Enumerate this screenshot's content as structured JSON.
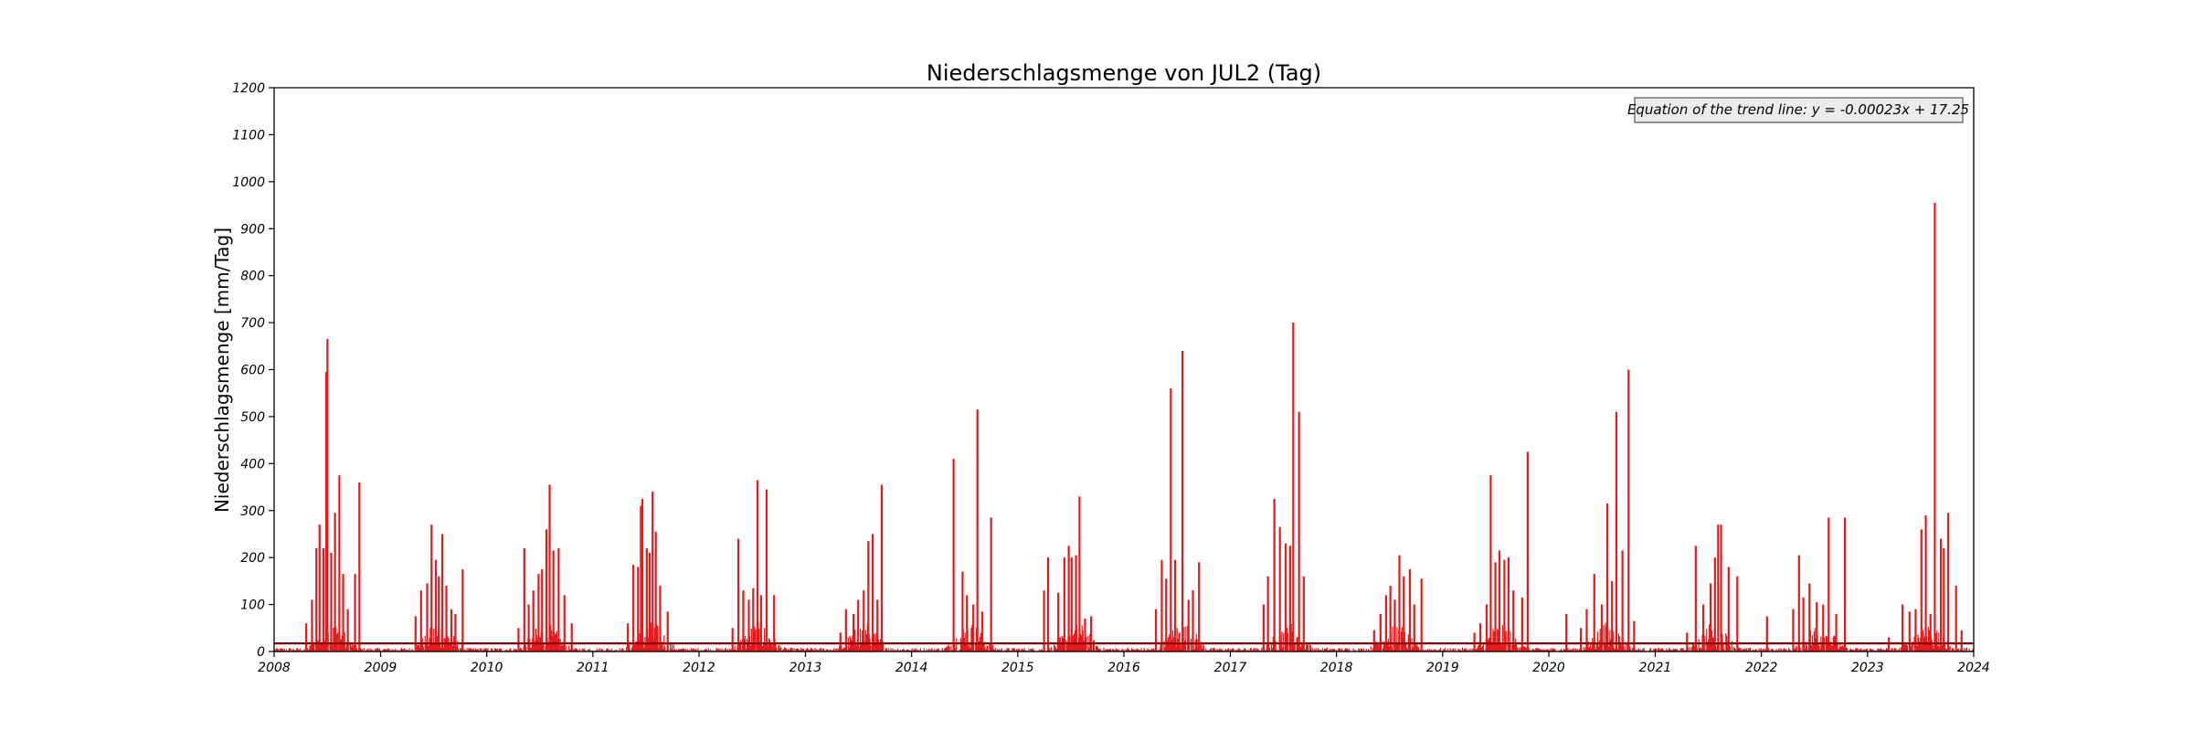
{
  "chart_data": {
    "type": "bar",
    "title": "Niederschlagsmenge von JUL2 (Tag)",
    "xlabel": "",
    "ylabel": "Niederschlagsmenge [mm/Tag]",
    "xlim": [
      "2008-01-01",
      "2024-01-01"
    ],
    "ylim": [
      0,
      1200
    ],
    "yticks": [
      0,
      100,
      200,
      300,
      400,
      500,
      600,
      700,
      800,
      900,
      1000,
      1100,
      1200
    ],
    "xticks": [
      "2008",
      "2009",
      "2010",
      "2011",
      "2012",
      "2013",
      "2014",
      "2015",
      "2016",
      "2017",
      "2018",
      "2019",
      "2020",
      "2021",
      "2022",
      "2023",
      "2024"
    ],
    "grid": false,
    "series": [
      {
        "color": "#e41a1c",
        "points": [
          [
            "2008-04-20",
            60
          ],
          [
            "2008-05-10",
            110
          ],
          [
            "2008-05-25",
            220
          ],
          [
            "2008-06-05",
            270
          ],
          [
            "2008-06-18",
            220
          ],
          [
            "2008-06-28",
            595
          ],
          [
            "2008-07-02",
            665
          ],
          [
            "2008-07-15",
            210
          ],
          [
            "2008-07-28",
            295
          ],
          [
            "2008-08-12",
            375
          ],
          [
            "2008-08-25",
            165
          ],
          [
            "2008-09-10",
            90
          ],
          [
            "2008-10-05",
            165
          ],
          [
            "2008-10-20",
            360
          ],
          [
            "2009-05-01",
            75
          ],
          [
            "2009-05-20",
            130
          ],
          [
            "2009-06-10",
            145
          ],
          [
            "2009-06-25",
            270
          ],
          [
            "2009-07-10",
            195
          ],
          [
            "2009-07-20",
            160
          ],
          [
            "2009-08-01",
            250
          ],
          [
            "2009-08-15",
            140
          ],
          [
            "2009-09-01",
            90
          ],
          [
            "2009-09-15",
            80
          ],
          [
            "2009-10-10",
            175
          ],
          [
            "2010-04-20",
            50
          ],
          [
            "2010-05-10",
            220
          ],
          [
            "2010-05-25",
            100
          ],
          [
            "2010-06-10",
            130
          ],
          [
            "2010-06-28",
            165
          ],
          [
            "2010-07-10",
            175
          ],
          [
            "2010-07-25",
            260
          ],
          [
            "2010-08-05",
            355
          ],
          [
            "2010-08-18",
            215
          ],
          [
            "2010-09-05",
            220
          ],
          [
            "2010-09-25",
            120
          ],
          [
            "2010-10-20",
            60
          ],
          [
            "2011-05-01",
            60
          ],
          [
            "2011-05-20",
            185
          ],
          [
            "2011-06-05",
            180
          ],
          [
            "2011-06-15",
            310
          ],
          [
            "2011-06-20",
            325
          ],
          [
            "2011-07-05",
            220
          ],
          [
            "2011-07-15",
            210
          ],
          [
            "2011-07-25",
            340
          ],
          [
            "2011-08-05",
            255
          ],
          [
            "2011-08-20",
            140
          ],
          [
            "2011-09-15",
            85
          ],
          [
            "2012-04-25",
            50
          ],
          [
            "2012-05-15",
            240
          ],
          [
            "2012-06-01",
            130
          ],
          [
            "2012-06-20",
            110
          ],
          [
            "2012-07-05",
            135
          ],
          [
            "2012-07-20",
            365
          ],
          [
            "2012-08-01",
            120
          ],
          [
            "2012-08-20",
            345
          ],
          [
            "2012-09-15",
            120
          ],
          [
            "2013-05-01",
            40
          ],
          [
            "2013-05-20",
            90
          ],
          [
            "2013-06-15",
            80
          ],
          [
            "2013-07-01",
            110
          ],
          [
            "2013-07-20",
            130
          ],
          [
            "2013-08-05",
            235
          ],
          [
            "2013-08-20",
            250
          ],
          [
            "2013-09-05",
            110
          ],
          [
            "2013-09-20",
            355
          ],
          [
            "2014-05-25",
            410
          ],
          [
            "2014-06-25",
            170
          ],
          [
            "2014-07-10",
            120
          ],
          [
            "2014-08-01",
            100
          ],
          [
            "2014-08-15",
            515
          ],
          [
            "2014-09-01",
            85
          ],
          [
            "2014-10-01",
            285
          ],
          [
            "2015-04-01",
            130
          ],
          [
            "2015-04-15",
            200
          ],
          [
            "2015-05-20",
            125
          ],
          [
            "2015-06-10",
            200
          ],
          [
            "2015-06-25",
            225
          ],
          [
            "2015-07-05",
            200
          ],
          [
            "2015-07-20",
            205
          ],
          [
            "2015-08-01",
            330
          ],
          [
            "2015-08-20",
            70
          ],
          [
            "2015-09-10",
            75
          ],
          [
            "2016-04-20",
            90
          ],
          [
            "2016-05-10",
            195
          ],
          [
            "2016-05-25",
            155
          ],
          [
            "2016-06-10",
            560
          ],
          [
            "2016-06-25",
            195
          ],
          [
            "2016-07-20",
            640
          ],
          [
            "2016-08-10",
            110
          ],
          [
            "2016-08-25",
            130
          ],
          [
            "2016-09-15",
            190
          ],
          [
            "2017-04-25",
            100
          ],
          [
            "2017-05-10",
            160
          ],
          [
            "2017-06-01",
            325
          ],
          [
            "2017-06-20",
            265
          ],
          [
            "2017-07-10",
            230
          ],
          [
            "2017-07-25",
            225
          ],
          [
            "2017-08-05",
            700
          ],
          [
            "2017-08-25",
            510
          ],
          [
            "2017-09-10",
            160
          ],
          [
            "2018-05-10",
            45
          ],
          [
            "2018-06-01",
            80
          ],
          [
            "2018-06-20",
            120
          ],
          [
            "2018-07-05",
            140
          ],
          [
            "2018-07-20",
            110
          ],
          [
            "2018-08-05",
            205
          ],
          [
            "2018-08-20",
            160
          ],
          [
            "2018-09-10",
            175
          ],
          [
            "2018-09-25",
            100
          ],
          [
            "2018-10-20",
            155
          ],
          [
            "2019-04-20",
            40
          ],
          [
            "2019-05-10",
            60
          ],
          [
            "2019-06-01",
            100
          ],
          [
            "2019-06-15",
            375
          ],
          [
            "2019-07-01",
            190
          ],
          [
            "2019-07-15",
            215
          ],
          [
            "2019-08-01",
            195
          ],
          [
            "2019-08-15",
            200
          ],
          [
            "2019-09-01",
            130
          ],
          [
            "2019-10-01",
            115
          ],
          [
            "2019-10-20",
            425
          ],
          [
            "2020-03-01",
            80
          ],
          [
            "2020-04-20",
            50
          ],
          [
            "2020-05-10",
            90
          ],
          [
            "2020-06-05",
            165
          ],
          [
            "2020-07-01",
            100
          ],
          [
            "2020-07-20",
            315
          ],
          [
            "2020-08-05",
            150
          ],
          [
            "2020-08-20",
            510
          ],
          [
            "2020-09-10",
            215
          ],
          [
            "2020-10-01",
            600
          ],
          [
            "2020-10-20",
            65
          ],
          [
            "2021-04-20",
            40
          ],
          [
            "2021-05-20",
            225
          ],
          [
            "2021-06-15",
            100
          ],
          [
            "2021-07-10",
            145
          ],
          [
            "2021-07-25",
            200
          ],
          [
            "2021-08-05",
            270
          ],
          [
            "2021-08-15",
            270
          ],
          [
            "2021-09-10",
            180
          ],
          [
            "2021-10-10",
            160
          ],
          [
            "2022-01-20",
            75
          ],
          [
            "2022-04-20",
            90
          ],
          [
            "2022-05-10",
            205
          ],
          [
            "2022-05-25",
            115
          ],
          [
            "2022-06-15",
            145
          ],
          [
            "2022-07-10",
            105
          ],
          [
            "2022-08-01",
            100
          ],
          [
            "2022-08-20",
            285
          ],
          [
            "2022-09-15",
            80
          ],
          [
            "2022-10-15",
            285
          ],
          [
            "2023-03-15",
            30
          ],
          [
            "2023-05-01",
            100
          ],
          [
            "2023-05-25",
            85
          ],
          [
            "2023-06-15",
            90
          ],
          [
            "2023-07-05",
            260
          ],
          [
            "2023-07-20",
            290
          ],
          [
            "2023-08-05",
            80
          ],
          [
            "2023-08-20",
            955
          ],
          [
            "2023-09-10",
            240
          ],
          [
            "2023-09-20",
            220
          ],
          [
            "2023-10-05",
            295
          ],
          [
            "2023-11-01",
            140
          ],
          [
            "2023-11-20",
            45
          ]
        ]
      }
    ],
    "trend_line": {
      "color": "#8b0000",
      "value": 17.25
    },
    "annotation": "Equation of the trend line: y = -0.00023x + 17.25",
    "legend": "none"
  }
}
